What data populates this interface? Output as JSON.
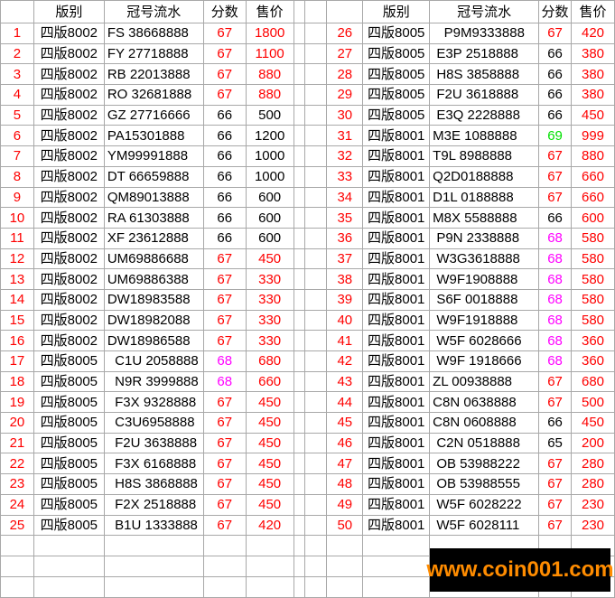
{
  "headers": {
    "edition": "版别",
    "serial": "冠号流水",
    "score": "分数",
    "price": "售价"
  },
  "colors": {
    "red": "#fe0000",
    "black": "#000000",
    "magenta": "#ff00ff",
    "green": "#00e000",
    "grid": "#a8a8a8",
    "watermark_bg": "#000000",
    "watermark_text": "#ff8c00"
  },
  "watermark": {
    "text": "www.coin001.com"
  },
  "rows": [
    {
      "n": "1",
      "edition": "四版8002",
      "serial": "FS 38668888",
      "score": "67",
      "score_color": "red",
      "price": "1800",
      "price_color": "red"
    },
    {
      "n": "2",
      "edition": "四版8002",
      "serial": "FY 27718888",
      "score": "67",
      "score_color": "red",
      "price": "1100",
      "price_color": "red"
    },
    {
      "n": "3",
      "edition": "四版8002",
      "serial": "RB 22013888",
      "score": "67",
      "score_color": "red",
      "price": "880",
      "price_color": "red"
    },
    {
      "n": "4",
      "edition": "四版8002",
      "serial": "RO 32681888",
      "score": "67",
      "score_color": "red",
      "price": "880",
      "price_color": "red"
    },
    {
      "n": "5",
      "edition": "四版8002",
      "serial": "GZ 27716666",
      "score": "66",
      "score_color": "black",
      "price": "500",
      "price_color": "black"
    },
    {
      "n": "6",
      "edition": "四版8002",
      "serial": "PA15301888",
      "score": "66",
      "score_color": "black",
      "price": "1200",
      "price_color": "black"
    },
    {
      "n": "7",
      "edition": "四版8002",
      "serial": "YM99991888",
      "score": "66",
      "score_color": "black",
      "price": "1000",
      "price_color": "black"
    },
    {
      "n": "8",
      "edition": "四版8002",
      "serial": "DT 66659888",
      "score": "66",
      "score_color": "black",
      "price": "1000",
      "price_color": "black"
    },
    {
      "n": "9",
      "edition": "四版8002",
      "serial": "QM89013888",
      "score": "66",
      "score_color": "black",
      "price": "600",
      "price_color": "black"
    },
    {
      "n": "10",
      "edition": "四版8002",
      "serial": "RA 61303888",
      "score": "66",
      "score_color": "black",
      "price": "600",
      "price_color": "black"
    },
    {
      "n": "11",
      "edition": "四版8002",
      "serial": "XF 23612888",
      "score": "66",
      "score_color": "black",
      "price": "600",
      "price_color": "black"
    },
    {
      "n": "12",
      "edition": "四版8002",
      "serial": "UM69886688",
      "score": "67",
      "score_color": "red",
      "price": "450",
      "price_color": "red"
    },
    {
      "n": "13",
      "edition": "四版8002",
      "serial": "UM69886388",
      "score": "67",
      "score_color": "red",
      "price": "330",
      "price_color": "red"
    },
    {
      "n": "14",
      "edition": "四版8002",
      "serial": "DW18983588",
      "score": "67",
      "score_color": "red",
      "price": "330",
      "price_color": "red"
    },
    {
      "n": "15",
      "edition": "四版8002",
      "serial": "DW18982088",
      "score": "67",
      "score_color": "red",
      "price": "330",
      "price_color": "red"
    },
    {
      "n": "16",
      "edition": "四版8002",
      "serial": "DW18986588",
      "score": "67",
      "score_color": "red",
      "price": "330",
      "price_color": "red"
    },
    {
      "n": "17",
      "edition": "四版8005",
      "serial": "  C1U 2058888",
      "score": "68",
      "score_color": "magenta",
      "price": "680",
      "price_color": "red"
    },
    {
      "n": "18",
      "edition": "四版8005",
      "serial": "  N9R 3999888",
      "score": "68",
      "score_color": "magenta",
      "price": "660",
      "price_color": "red"
    },
    {
      "n": "19",
      "edition": "四版8005",
      "serial": "  F3X 9328888",
      "score": "67",
      "score_color": "red",
      "price": "450",
      "price_color": "red"
    },
    {
      "n": "20",
      "edition": "四版8005",
      "serial": "  C3U6958888",
      "score": "67",
      "score_color": "red",
      "price": "450",
      "price_color": "red"
    },
    {
      "n": "21",
      "edition": "四版8005",
      "serial": "  F2U 3638888",
      "score": "67",
      "score_color": "red",
      "price": "450",
      "price_color": "red"
    },
    {
      "n": "22",
      "edition": "四版8005",
      "serial": "  F3X 6168888",
      "score": "67",
      "score_color": "red",
      "price": "450",
      "price_color": "red"
    },
    {
      "n": "23",
      "edition": "四版8005",
      "serial": "  H8S 3868888",
      "score": "67",
      "score_color": "red",
      "price": "450",
      "price_color": "red"
    },
    {
      "n": "24",
      "edition": "四版8005",
      "serial": "  F2X 2518888",
      "score": "67",
      "score_color": "red",
      "price": "450",
      "price_color": "red"
    },
    {
      "n": "25",
      "edition": "四版8005",
      "serial": "  B1U 1333888",
      "score": "67",
      "score_color": "red",
      "price": "420",
      "price_color": "red"
    },
    {
      "n": "26",
      "edition": "四版8005",
      "serial": "   P9M9333888",
      "score": "67",
      "score_color": "red",
      "price": "420",
      "price_color": "red"
    },
    {
      "n": "27",
      "edition": "四版8005",
      "serial": " E3P 2518888",
      "score": "66",
      "score_color": "black",
      "price": "380",
      "price_color": "red"
    },
    {
      "n": "28",
      "edition": "四版8005",
      "serial": " H8S 3858888",
      "score": "66",
      "score_color": "black",
      "price": "380",
      "price_color": "red"
    },
    {
      "n": "29",
      "edition": "四版8005",
      "serial": " F2U 3618888",
      "score": "66",
      "score_color": "black",
      "price": "380",
      "price_color": "red"
    },
    {
      "n": "30",
      "edition": "四版8005",
      "serial": " E3Q 2228888",
      "score": "66",
      "score_color": "black",
      "price": "450",
      "price_color": "red"
    },
    {
      "n": "31",
      "edition": "四版8001",
      "serial": "M3E 1088888",
      "score": "69",
      "score_color": "green",
      "price": "999",
      "price_color": "red"
    },
    {
      "n": "32",
      "edition": "四版8001",
      "serial": "T9L 8988888",
      "score": "67",
      "score_color": "red",
      "price": "880",
      "price_color": "red"
    },
    {
      "n": "33",
      "edition": "四版8001",
      "serial": "Q2D0188888",
      "score": "67",
      "score_color": "red",
      "price": "660",
      "price_color": "red"
    },
    {
      "n": "34",
      "edition": "四版8001",
      "serial": "D1L 0188888",
      "score": "67",
      "score_color": "red",
      "price": "660",
      "price_color": "red"
    },
    {
      "n": "35",
      "edition": "四版8001",
      "serial": "M8X 5588888",
      "score": "66",
      "score_color": "black",
      "price": "600",
      "price_color": "red"
    },
    {
      "n": "36",
      "edition": "四版8001",
      "serial": " P9N 2338888",
      "score": "68",
      "score_color": "magenta",
      "price": "580",
      "price_color": "red"
    },
    {
      "n": "37",
      "edition": "四版8001",
      "serial": " W3G3618888",
      "score": "68",
      "score_color": "magenta",
      "price": "580",
      "price_color": "red"
    },
    {
      "n": "38",
      "edition": "四版8001",
      "serial": " W9F1908888",
      "score": "68",
      "score_color": "magenta",
      "price": "580",
      "price_color": "red"
    },
    {
      "n": "39",
      "edition": "四版8001",
      "serial": " S6F 0018888",
      "score": "68",
      "score_color": "magenta",
      "price": "580",
      "price_color": "red"
    },
    {
      "n": "40",
      "edition": "四版8001",
      "serial": " W9F1918888",
      "score": "68",
      "score_color": "magenta",
      "price": "580",
      "price_color": "red"
    },
    {
      "n": "41",
      "edition": "四版8001",
      "serial": " W5F 6028666",
      "score": "68",
      "score_color": "magenta",
      "price": "360",
      "price_color": "red"
    },
    {
      "n": "42",
      "edition": "四版8001",
      "serial": " W9F 1918666",
      "score": "68",
      "score_color": "magenta",
      "price": "360",
      "price_color": "red"
    },
    {
      "n": "43",
      "edition": "四版8001",
      "serial": "ZL 00938888",
      "score": "67",
      "score_color": "red",
      "price": "680",
      "price_color": "red"
    },
    {
      "n": "44",
      "edition": "四版8001",
      "serial": "C8N 0638888",
      "score": "67",
      "score_color": "red",
      "price": "500",
      "price_color": "red"
    },
    {
      "n": "45",
      "edition": "四版8001",
      "serial": "C8N 0608888",
      "score": "66",
      "score_color": "black",
      "price": "450",
      "price_color": "red"
    },
    {
      "n": "46",
      "edition": "四版8001",
      "serial": " C2N 0518888",
      "score": "65",
      "score_color": "black",
      "price": "200",
      "price_color": "red"
    },
    {
      "n": "47",
      "edition": "四版8001",
      "serial": " OB 53988222",
      "score": "67",
      "score_color": "red",
      "price": "280",
      "price_color": "red"
    },
    {
      "n": "48",
      "edition": "四版8001",
      "serial": " OB 53988555",
      "score": "67",
      "score_color": "red",
      "price": "280",
      "price_color": "red"
    },
    {
      "n": "49",
      "edition": "四版8001",
      "serial": " W5F 6028222",
      "score": "67",
      "score_color": "red",
      "price": "230",
      "price_color": "red"
    },
    {
      "n": "50",
      "edition": "四版8001",
      "serial": " W5F 6028111",
      "score": "67",
      "score_color": "red",
      "price": "230",
      "price_color": "red"
    }
  ]
}
